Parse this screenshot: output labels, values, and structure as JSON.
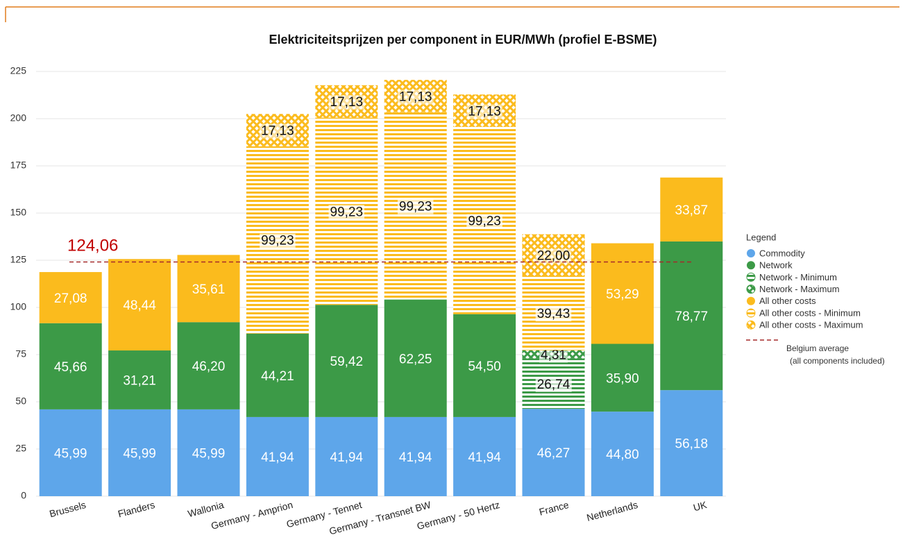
{
  "chart_data": {
    "type": "stacked_bar",
    "title": "Elektriciteitsprijzen per component in EUR/MWh (profiel E-BSME)",
    "categories": [
      "Brussels",
      "Flanders",
      "Wallonia",
      "Germany - Amprion",
      "Germany - Tennet",
      "Germany - Transnet BW",
      "Germany - 50 Hertz",
      "France",
      "Netherlands",
      "UK"
    ],
    "series": [
      {
        "name": "Commodity",
        "color": "#5ea6ea",
        "pattern": "solid",
        "values": [
          45.99,
          45.99,
          45.99,
          41.94,
          41.94,
          41.94,
          41.94,
          46.27,
          44.8,
          56.18
        ],
        "value_labels": [
          "45,99",
          "45,99",
          "45,99",
          "41,94",
          "41,94",
          "41,94",
          "41,94",
          "46,27",
          "44,80",
          "56,18"
        ]
      },
      {
        "name": "Network",
        "color": "#3c9a47",
        "pattern": "solid",
        "values": [
          45.66,
          31.21,
          46.2,
          44.21,
          59.42,
          62.25,
          54.5,
          null,
          35.9,
          78.77
        ],
        "value_labels": [
          "45,66",
          "31,21",
          "46,20",
          "44,21",
          "59,42",
          "62,25",
          "54,50",
          null,
          "35,90",
          "78,77"
        ]
      },
      {
        "name": "Network - Minimum",
        "color": "#3c9a47",
        "pattern": "stripes",
        "values": [
          null,
          null,
          null,
          null,
          null,
          null,
          null,
          26.74,
          null,
          null
        ],
        "value_labels": [
          null,
          null,
          null,
          null,
          null,
          null,
          null,
          "26,74",
          null,
          null
        ]
      },
      {
        "name": "Network - Maximum",
        "color": "#3c9a47",
        "pattern": "crosshatch",
        "values": [
          null,
          null,
          null,
          null,
          null,
          null,
          null,
          4.31,
          null,
          null
        ],
        "value_labels": [
          null,
          null,
          null,
          null,
          null,
          null,
          null,
          "4,31",
          null,
          null
        ]
      },
      {
        "name": "All other costs",
        "color": "#fbbb1d",
        "pattern": "solid",
        "values": [
          27.08,
          48.44,
          35.61,
          null,
          null,
          null,
          null,
          null,
          53.29,
          33.87
        ],
        "value_labels": [
          "27,08",
          "48,44",
          "35,61",
          null,
          null,
          null,
          null,
          null,
          "53,29",
          "33,87"
        ]
      },
      {
        "name": "All other costs - Minimum",
        "color": "#fbbb1d",
        "pattern": "stripes",
        "values": [
          null,
          null,
          null,
          99.23,
          99.23,
          99.23,
          99.23,
          39.43,
          null,
          null
        ],
        "value_labels": [
          null,
          null,
          null,
          "99,23",
          "99,23",
          "99,23",
          "99,23",
          "39,43",
          null,
          null
        ]
      },
      {
        "name": "All other costs - Maximum",
        "color": "#fbbb1d",
        "pattern": "crosshatch",
        "values": [
          null,
          null,
          null,
          17.13,
          17.13,
          17.13,
          17.13,
          22.0,
          null,
          null
        ],
        "value_labels": [
          null,
          null,
          null,
          "17,13",
          "17,13",
          "17,13",
          "17,13",
          "22,00",
          null,
          null
        ]
      }
    ],
    "reference_line": {
      "name": "Belgium average",
      "note": "(all components included)",
      "value": 124.06,
      "label": "124,06",
      "color": "#a52a2a"
    },
    "legend_title": "Legend",
    "legend_position": "right",
    "ylim": [
      0,
      225
    ],
    "yticks": [
      0,
      25,
      50,
      75,
      100,
      125,
      150,
      175,
      200,
      225
    ],
    "grid": true
  }
}
